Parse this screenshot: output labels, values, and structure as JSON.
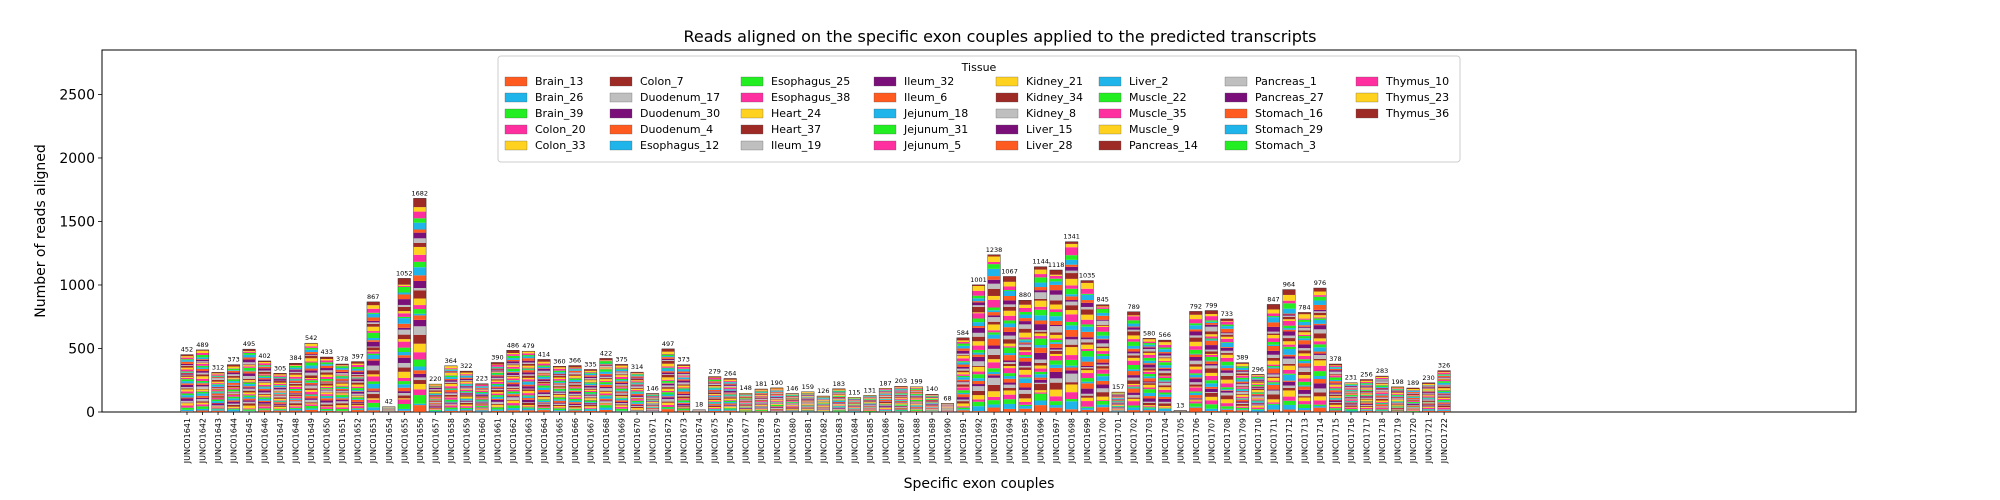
{
  "chart_data": {
    "type": "bar",
    "stacked": true,
    "title": "Reads aligned on the specific exon couples applied to the predicted transcripts",
    "xlabel": "Specific exon couples",
    "ylabel": "Number of reads aligned",
    "ylim": [
      0,
      2850
    ],
    "yticks": [
      0,
      500,
      1000,
      1500,
      2000,
      2500
    ],
    "grid": false,
    "legend": {
      "title": "Tissue",
      "placement": "top-center",
      "entries": [
        "Brain_13",
        "Brain_26",
        "Brain_39",
        "Colon_20",
        "Colon_33",
        "Colon_7",
        "Duodenum_17",
        "Duodenum_30",
        "Duodenum_4",
        "Esophagus_12",
        "Esophagus_25",
        "Esophagus_38",
        "Heart_24",
        "Heart_37",
        "Ileum_19",
        "Ileum_32",
        "Ileum_6",
        "Jejunum_18",
        "Jejunum_31",
        "Jejunum_5",
        "Kidney_21",
        "Kidney_34",
        "Kidney_8",
        "Liver_15",
        "Liver_28",
        "Liver_2",
        "Muscle_22",
        "Muscle_35",
        "Muscle_9",
        "Pancreas_14",
        "Pancreas_1",
        "Pancreas_27",
        "Stomach_16",
        "Stomach_29",
        "Stomach_3",
        "Thymus_10",
        "Thymus_23",
        "Thymus_36"
      ]
    },
    "series_colors": [
      "#ff5a1f",
      "#1fb5ea",
      "#22ee22",
      "#ff2fa0",
      "#ffd21f",
      "#9e2a26",
      "#bfbfbf",
      "#7a0f7a",
      "#ff5a1f",
      "#1fb5ea",
      "#22ee22",
      "#ff2fa0",
      "#ffd21f",
      "#9e2a26",
      "#bfbfbf",
      "#7a0f7a",
      "#ff5a1f",
      "#1fb5ea",
      "#22ee22",
      "#ff2fa0",
      "#ffd21f",
      "#9e2a26",
      "#bfbfbf",
      "#7a0f7a",
      "#ff5a1f",
      "#1fb5ea",
      "#22ee22",
      "#ff2fa0",
      "#ffd21f",
      "#9e2a26",
      "#bfbfbf",
      "#7a0f7a",
      "#ff5a1f",
      "#1fb5ea",
      "#22ee22",
      "#ff2fa0",
      "#ffd21f",
      "#9e2a26"
    ],
    "categories": [
      "JUNC01641",
      "JUNC01642",
      "JUNC01643",
      "JUNC01644",
      "JUNC01645",
      "JUNC01646",
      "JUNC01647",
      "JUNC01648",
      "JUNC01649",
      "JUNC01650",
      "JUNC01651",
      "JUNC01652",
      "JUNC01653",
      "JUNC01654",
      "JUNC01655",
      "JUNC01656",
      "JUNC01657",
      "JUNC01658",
      "JUNC01659",
      "JUNC01660",
      "JUNC01661",
      "JUNC01662",
      "JUNC01663",
      "JUNC01664",
      "JUNC01665",
      "JUNC01666",
      "JUNC01667",
      "JUNC01668",
      "JUNC01669",
      "JUNC01670",
      "JUNC01671",
      "JUNC01672",
      "JUNC01673",
      "JUNC01674",
      "JUNC01675",
      "JUNC01676",
      "JUNC01677",
      "JUNC01678",
      "JUNC01679",
      "JUNC01680",
      "JUNC01681",
      "JUNC01682",
      "JUNC01683",
      "JUNC01684",
      "JUNC01685",
      "JUNC01686",
      "JUNC01687",
      "JUNC01688",
      "JUNC01689",
      "JUNC01690",
      "JUNC01691",
      "JUNC01692",
      "JUNC01693",
      "JUNC01694",
      "JUNC01695",
      "JUNC01696",
      "JUNC01697",
      "JUNC01698",
      "JUNC01699",
      "JUNC01700",
      "JUNC01701",
      "JUNC01702",
      "JUNC01703",
      "JUNC01704",
      "JUNC01705",
      "JUNC01706",
      "JUNC01707",
      "JUNC01708",
      "JUNC01709",
      "JUNC01710",
      "JUNC01711",
      "JUNC01712",
      "JUNC01713",
      "JUNC01714",
      "JUNC01715",
      "JUNC01716",
      "JUNC01717",
      "JUNC01718",
      "JUNC01719",
      "JUNC01720",
      "JUNC01721",
      "JUNC01722"
    ],
    "totals": [
      452,
      489,
      312,
      373,
      495,
      402,
      305,
      384,
      542,
      433,
      378,
      397,
      867,
      42,
      1052,
      1682,
      220,
      364,
      322,
      223,
      390,
      486,
      479,
      414,
      360,
      366,
      335,
      422,
      375,
      314,
      146,
      497,
      373,
      18,
      279,
      264,
      148,
      181,
      190,
      146,
      159,
      126,
      183,
      115,
      131,
      187,
      203,
      199,
      140,
      68,
      584,
      1001,
      1238,
      1067,
      880,
      1144,
      1118,
      1341,
      1035,
      845,
      157,
      789,
      580,
      566,
      13,
      792,
      799,
      733,
      389,
      296,
      847,
      964,
      784,
      976,
      378,
      231,
      256,
      283,
      198,
      189,
      230,
      326
    ],
    "total_labels": [
      "452",
      "489",
      "312",
      "373",
      "495",
      "402",
      "305",
      "384",
      "542",
      "433",
      "378",
      "397",
      "867",
      "42",
      "1052",
      "1682",
      "220",
      "364",
      "322",
      "223",
      "390",
      "486",
      "479",
      "414",
      "360",
      "366",
      "335",
      "422",
      "375",
      "314",
      "146",
      "497",
      "373",
      "18",
      "279",
      "264",
      "148",
      "181",
      "190",
      "146",
      "159",
      "126",
      "183",
      "115",
      "131",
      "187",
      "203",
      "199",
      "140",
      "68",
      "584",
      "1001",
      "1238",
      "1067",
      "880",
      "1144",
      "1118",
      "1341",
      "1035",
      "845",
      "157",
      "789",
      "580",
      "566",
      "13",
      "792",
      "799",
      "733",
      "389",
      "296",
      "847",
      "964",
      "784",
      "976",
      "378",
      "231",
      "256",
      "283",
      "198",
      "189",
      "230",
      "326"
    ]
  }
}
